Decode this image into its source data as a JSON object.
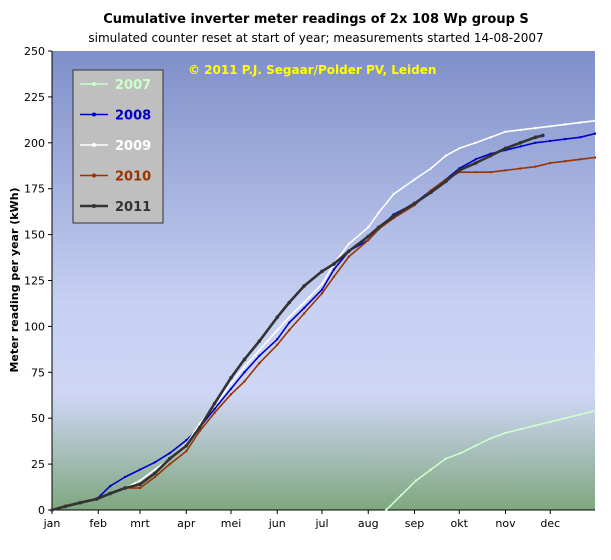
{
  "chart_data": {
    "type": "line",
    "title": "Cumulative inverter meter readings of 2x 108 Wp group S",
    "subtitle": "simulated counter reset at start of year; measurements started 14-08-2007",
    "copyright": "© 2011  P.J. Segaar/Polder PV, Leiden",
    "xlabel": "",
    "ylabel": "Meter reading per year (kWh)",
    "x_unit": "day of year",
    "xlim": [
      1,
      365
    ],
    "ylim": [
      0,
      250
    ],
    "yticks": [
      0,
      25,
      50,
      75,
      100,
      125,
      150,
      175,
      200,
      225,
      250
    ],
    "month_labels": [
      "jan",
      "feb",
      "mrt",
      "apr",
      "mei",
      "jun",
      "jul",
      "aug",
      "sep",
      "okt",
      "nov",
      "dec"
    ],
    "month_label_days": [
      1,
      32,
      60,
      91,
      121,
      152,
      182,
      213,
      244,
      274,
      305,
      335
    ],
    "grid": false,
    "legend_position": "top-left",
    "series": [
      {
        "name": "2007",
        "color": "#ccffcc",
        "x": [
          225,
          235,
          245,
          255,
          265,
          275,
          285,
          295,
          305,
          315,
          325,
          335,
          345,
          355,
          365
        ],
        "y": [
          0,
          8,
          16,
          22,
          28,
          31,
          35,
          39,
          42,
          44,
          46,
          48,
          50,
          52,
          54
        ]
      },
      {
        "name": "2008",
        "color": "#0000cc",
        "x": [
          1,
          10,
          20,
          31,
          40,
          50,
          60,
          70,
          80,
          91,
          100,
          110,
          121,
          130,
          140,
          152,
          160,
          170,
          182,
          190,
          200,
          213,
          220,
          230,
          244,
          255,
          265,
          274,
          285,
          295,
          305,
          315,
          325,
          335,
          345,
          355,
          365
        ],
        "y": [
          0,
          2,
          4,
          6,
          13,
          18,
          22,
          26,
          31,
          38,
          45,
          55,
          66,
          75,
          84,
          93,
          102,
          110,
          120,
          131,
          141,
          147,
          153,
          161,
          167,
          174,
          180,
          186,
          191,
          194,
          196,
          198,
          200,
          201,
          202,
          203,
          205
        ]
      },
      {
        "name": "2009",
        "color": "#ffffff",
        "x": [
          1,
          10,
          20,
          31,
          40,
          50,
          60,
          70,
          80,
          91,
          100,
          110,
          121,
          130,
          140,
          152,
          160,
          170,
          182,
          190,
          200,
          213,
          220,
          230,
          244,
          255,
          265,
          274,
          285,
          295,
          305,
          315,
          325,
          335,
          345,
          355,
          365
        ],
        "y": [
          0,
          2,
          4,
          6,
          9,
          12,
          16,
          22,
          28,
          36,
          47,
          57,
          69,
          78,
          87,
          98,
          105,
          113,
          123,
          134,
          145,
          154,
          162,
          172,
          180,
          186,
          193,
          197,
          200,
          203,
          206,
          207,
          208,
          209,
          210,
          211,
          212
        ]
      },
      {
        "name": "2010",
        "color": "#993300",
        "x": [
          1,
          10,
          20,
          31,
          40,
          50,
          60,
          70,
          80,
          91,
          100,
          110,
          121,
          130,
          140,
          152,
          160,
          170,
          182,
          190,
          200,
          213,
          220,
          230,
          244,
          255,
          265,
          274,
          285,
          295,
          305,
          315,
          325,
          335,
          345,
          355,
          365
        ],
        "y": [
          0,
          2,
          4,
          6,
          9,
          12,
          12,
          18,
          25,
          32,
          43,
          53,
          63,
          70,
          80,
          90,
          98,
          107,
          118,
          127,
          138,
          147,
          153,
          159,
          166,
          174,
          180,
          184,
          184,
          184,
          185,
          186,
          187,
          189,
          190,
          191,
          192
        ]
      },
      {
        "name": "2011",
        "color": "#333333",
        "x": [
          1,
          10,
          20,
          31,
          40,
          50,
          60,
          70,
          80,
          91,
          100,
          110,
          121,
          130,
          140,
          152,
          160,
          170,
          182,
          190,
          200,
          213,
          220,
          230,
          244,
          255,
          265,
          274,
          285,
          295,
          305,
          315,
          325,
          330
        ],
        "y": [
          0,
          2,
          4,
          6,
          9,
          12,
          14,
          20,
          28,
          35,
          45,
          58,
          72,
          82,
          92,
          105,
          113,
          122,
          130,
          134,
          141,
          149,
          154,
          160,
          167,
          173,
          179,
          185,
          189,
          193,
          197,
          200,
          203,
          204
        ]
      }
    ]
  }
}
